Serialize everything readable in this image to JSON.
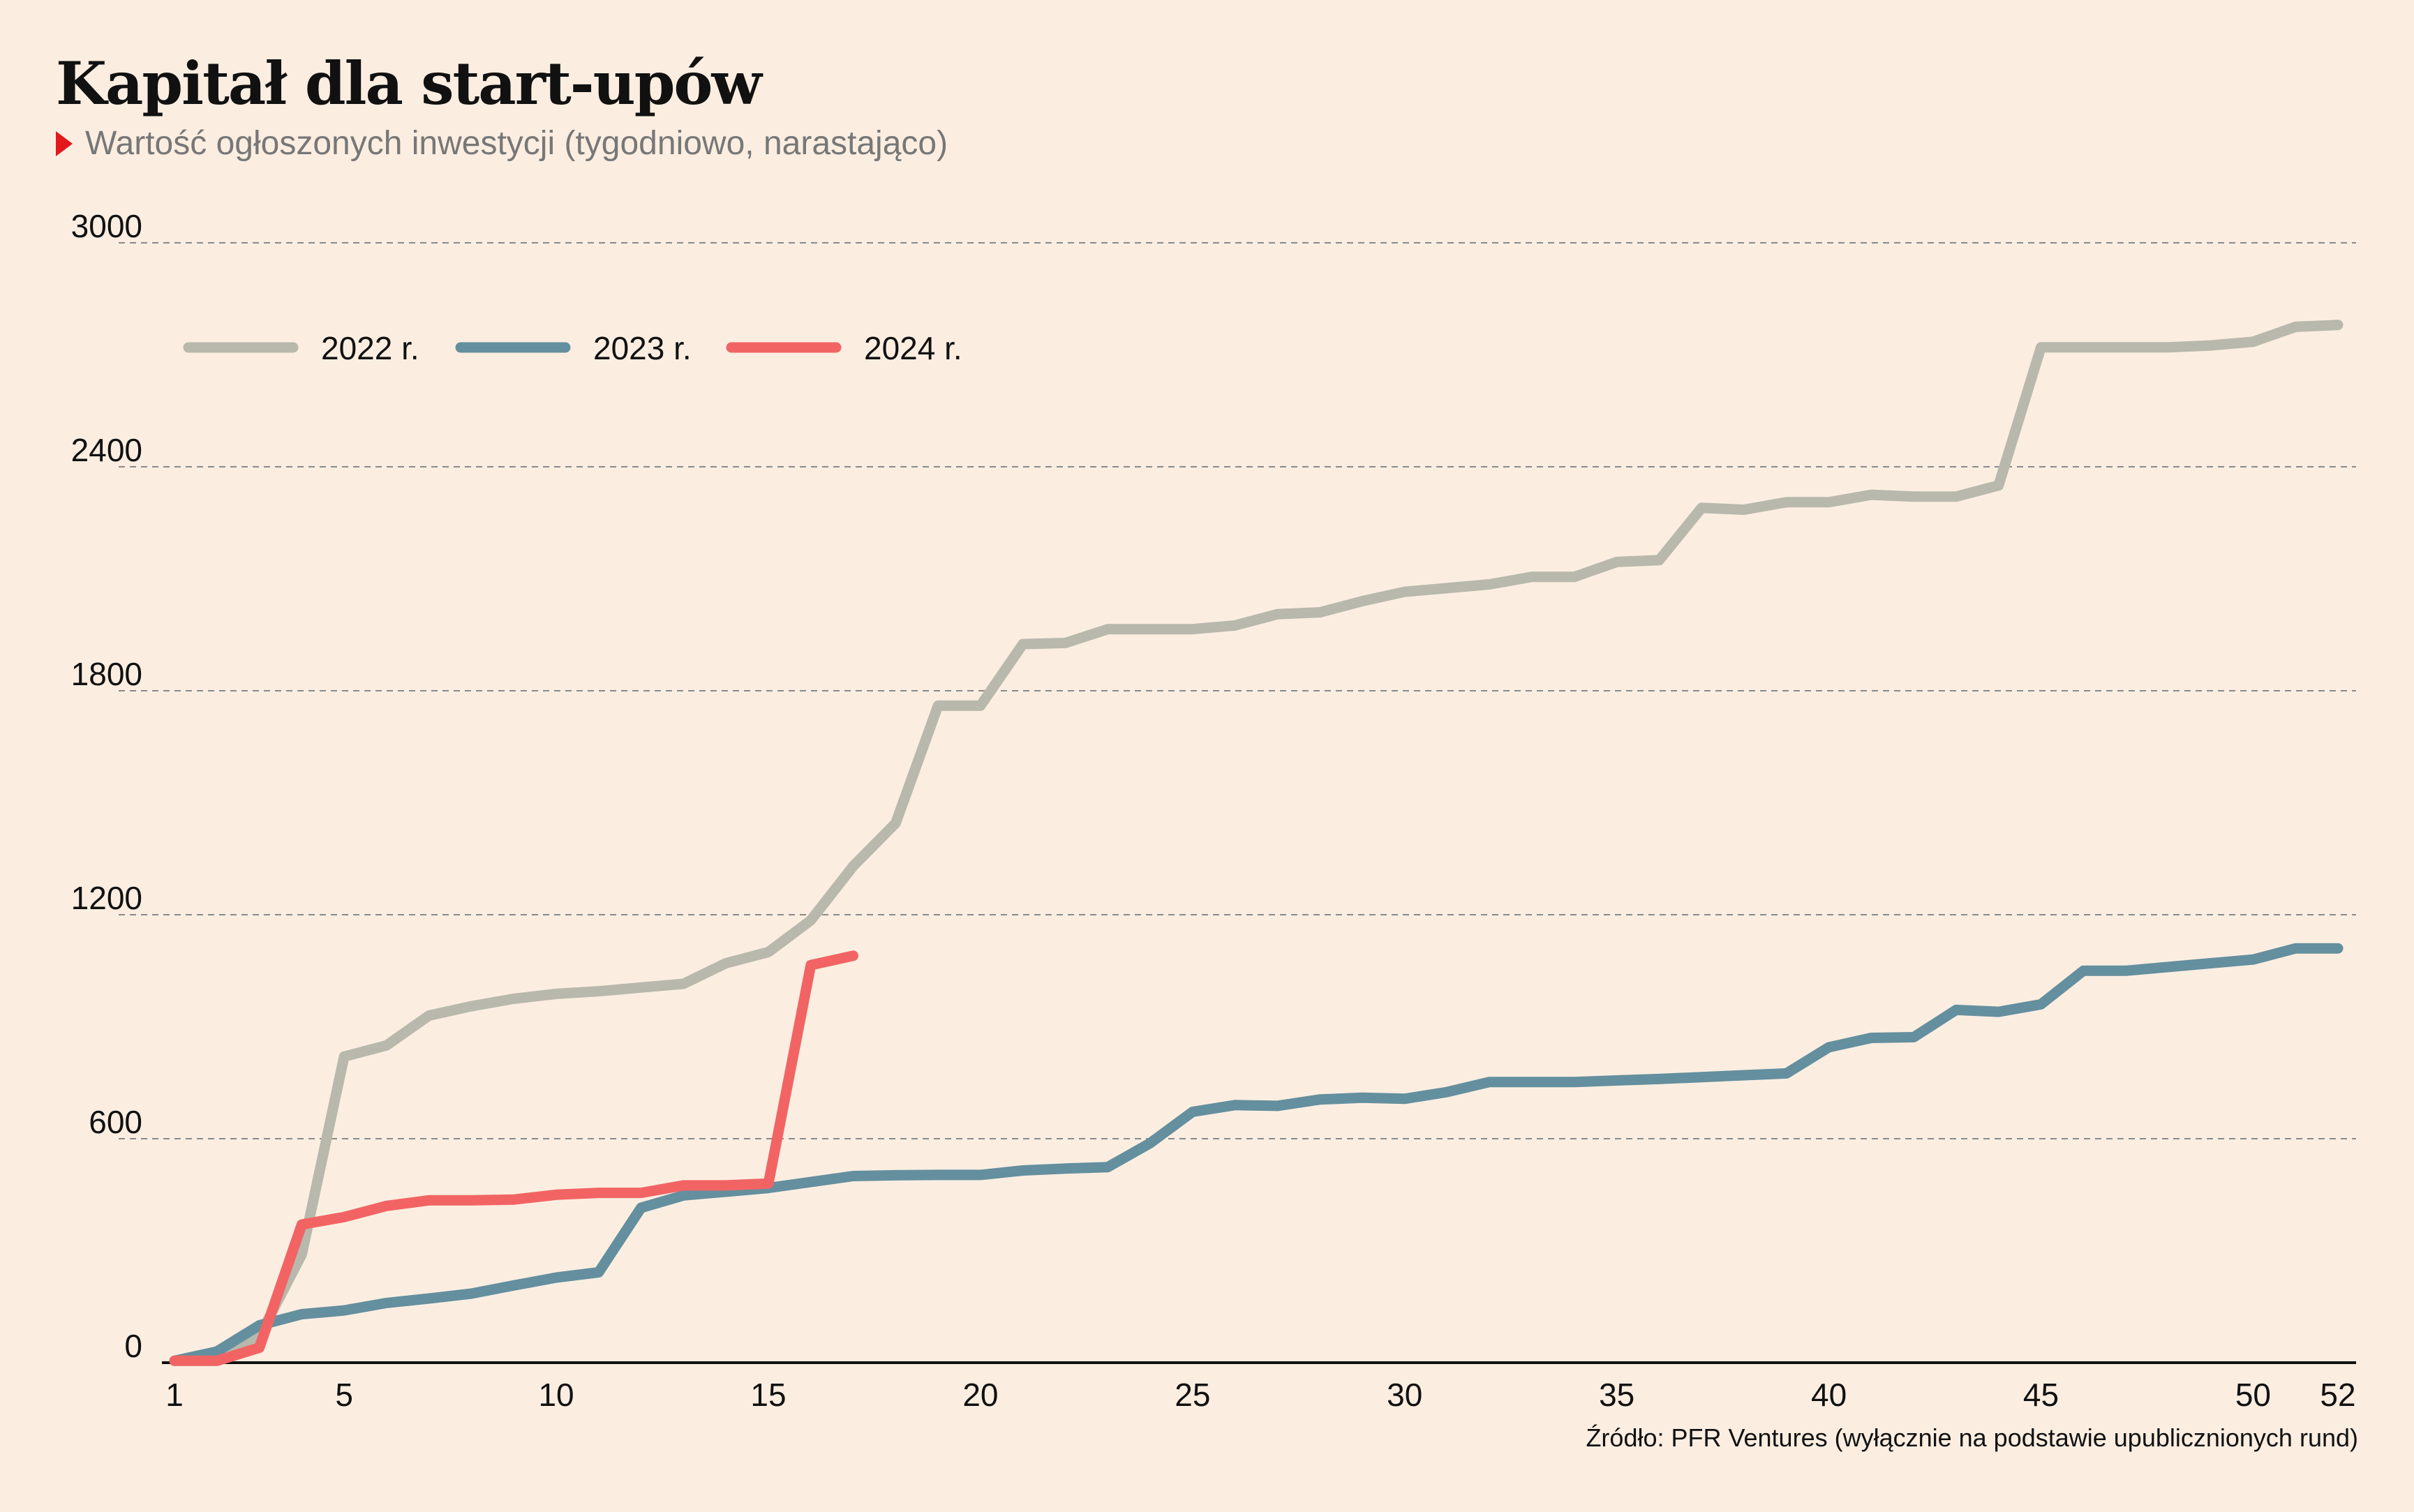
{
  "header": {
    "title": "Kapitał dla start-upów",
    "subtitle": "Wartość ogłoszonych inwestycji (tygodniowo, narastająco)"
  },
  "footer": {
    "source": "Źródło: PFR Ventures (wyłącznie na podstawie upublicznionych rund)"
  },
  "colors": {
    "background": "#fbeee1",
    "subtitle_marker": "#e3191c",
    "series_2022": "#b8b8ac",
    "series_2023": "#648f9e",
    "series_2024": "#f26464"
  },
  "chart_data": {
    "type": "line",
    "title": "Kapitał dla start-upów",
    "subtitle": "Wartość ogłoszonych inwestycji (tygodniowo, narastająco)",
    "xlabel": "",
    "ylabel": "",
    "xlim": [
      1,
      52
    ],
    "ylim": [
      0,
      3000
    ],
    "x_ticks": [
      1,
      5,
      10,
      15,
      20,
      25,
      30,
      35,
      40,
      45,
      50,
      52
    ],
    "y_ticks": [
      0,
      600,
      1200,
      1800,
      2400,
      3000
    ],
    "grid": "horizontal dashed",
    "legend": "top-left",
    "series": [
      {
        "name": "2022 r.",
        "color": "#b8b8ac",
        "x": [
          1,
          2,
          3,
          4,
          5,
          6,
          7,
          8,
          9,
          10,
          11,
          12,
          13,
          14,
          15,
          16,
          17,
          18,
          19,
          20,
          21,
          22,
          23,
          24,
          25,
          26,
          27,
          28,
          29,
          30,
          31,
          32,
          33,
          34,
          35,
          36,
          37,
          38,
          39,
          40,
          41,
          42,
          43,
          44,
          45,
          46,
          47,
          48,
          49,
          50,
          51,
          52
        ],
        "values": [
          5,
          5,
          70,
          290,
          820,
          850,
          930,
          955,
          975,
          988,
          995,
          1005,
          1015,
          1070,
          1100,
          1185,
          1330,
          1445,
          1760,
          1760,
          1925,
          1928,
          1965,
          1965,
          1965,
          1975,
          2005,
          2010,
          2040,
          2065,
          2075,
          2085,
          2105,
          2105,
          2145,
          2150,
          2290,
          2285,
          2305,
          2305,
          2325,
          2320,
          2320,
          2350,
          2720,
          2720,
          2720,
          2720,
          2725,
          2735,
          2775,
          2780
        ]
      },
      {
        "name": "2023 r.",
        "color": "#648f9e",
        "x": [
          1,
          2,
          3,
          4,
          5,
          6,
          7,
          8,
          9,
          10,
          11,
          12,
          13,
          14,
          15,
          16,
          17,
          18,
          19,
          20,
          21,
          22,
          23,
          24,
          25,
          26,
          27,
          28,
          29,
          30,
          31,
          32,
          33,
          34,
          35,
          36,
          37,
          38,
          39,
          40,
          41,
          42,
          43,
          44,
          45,
          46,
          47,
          48,
          49,
          50,
          51,
          52
        ],
        "values": [
          5,
          30,
          100,
          130,
          140,
          160,
          172,
          185,
          207,
          228,
          242,
          415,
          448,
          458,
          468,
          484,
          500,
          502,
          503,
          503,
          515,
          520,
          524,
          588,
          672,
          690,
          688,
          705,
          710,
          707,
          725,
          752,
          752,
          752,
          756,
          760,
          765,
          770,
          775,
          845,
          870,
          872,
          945,
          940,
          960,
          1050,
          1050,
          1060,
          1070,
          1080,
          1110,
          1110
        ]
      },
      {
        "name": "2024 r.",
        "color": "#f26464",
        "x": [
          1,
          2,
          3,
          4,
          5,
          6,
          7,
          8,
          9,
          10,
          11,
          12,
          13,
          14,
          15,
          16,
          17
        ],
        "values": [
          5,
          5,
          40,
          370,
          390,
          420,
          435,
          435,
          437,
          450,
          455,
          455,
          475,
          475,
          480,
          1065,
          1090
        ]
      }
    ]
  }
}
